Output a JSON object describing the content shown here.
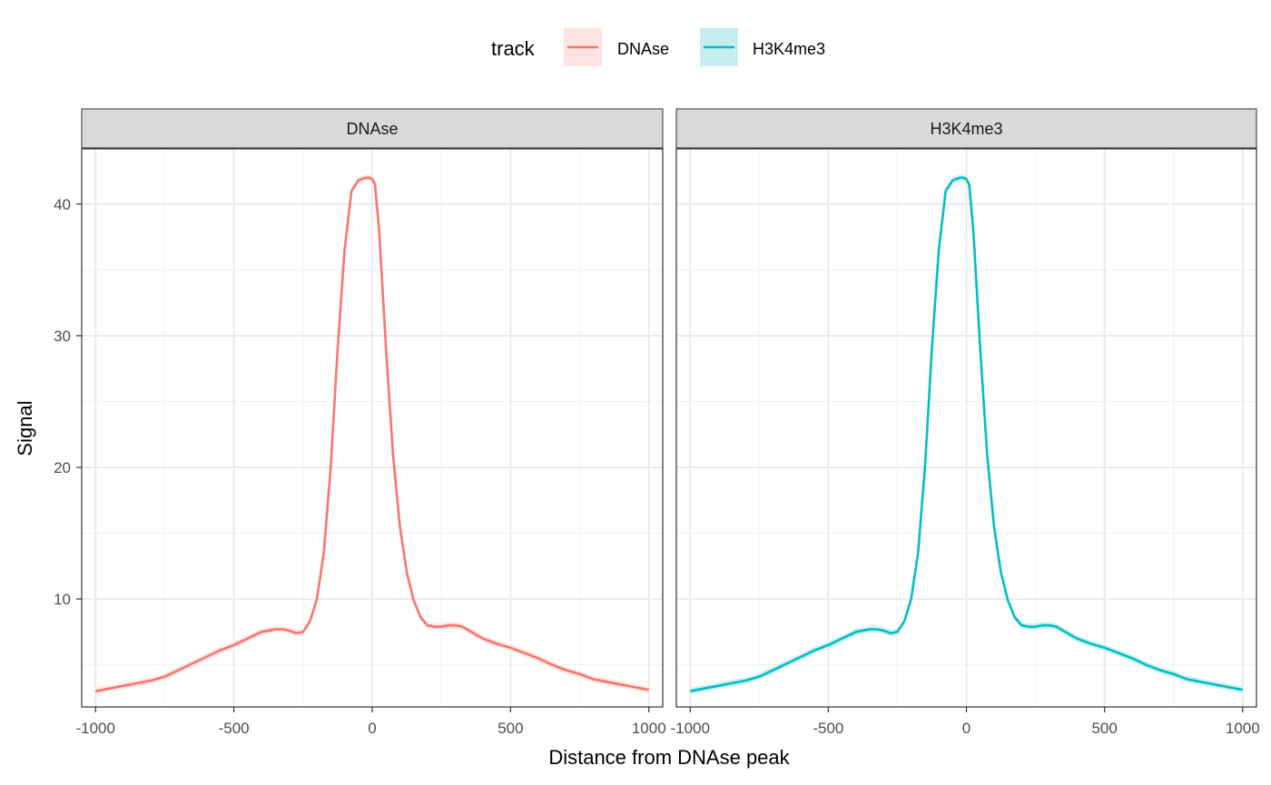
{
  "chart_data": {
    "type": "line",
    "xlabel": "Distance from DNAse peak",
    "ylabel": "Signal",
    "xlim": [
      -1050,
      1050
    ],
    "ylim": [
      1.8,
      44.2
    ],
    "x_ticks": [
      -1000,
      -500,
      0,
      500,
      1000
    ],
    "x_tick_labels": [
      "-1000",
      "-500",
      "0",
      "500",
      "1000"
    ],
    "y_ticks": [
      10,
      20,
      30,
      40
    ],
    "y_tick_labels": [
      "10",
      "20",
      "30",
      "40"
    ],
    "grid": true,
    "legend": {
      "title": "track",
      "placement": "top",
      "entries": [
        {
          "label": "DNAse",
          "color": "#F8766D",
          "fill": "#FDE3E1"
        },
        {
          "label": "H3K4me3",
          "color": "#00BFC4",
          "fill": "#C6EEF0"
        }
      ]
    },
    "facets": [
      "DNAse",
      "H3K4me3"
    ],
    "series": [
      {
        "name": "DNAse",
        "color": "#F8766D",
        "x": [
          -1000,
          -950,
          -900,
          -850,
          -800,
          -750,
          -700,
          -650,
          -600,
          -550,
          -500,
          -450,
          -400,
          -350,
          -325,
          -300,
          -275,
          -250,
          -225,
          -200,
          -175,
          -150,
          -125,
          -100,
          -75,
          -50,
          -25,
          -10,
          0,
          10,
          25,
          50,
          75,
          100,
          125,
          150,
          175,
          200,
          225,
          250,
          275,
          300,
          325,
          350,
          400,
          450,
          500,
          550,
          600,
          650,
          700,
          750,
          800,
          850,
          900,
          950,
          1000
        ],
        "y": [
          3.0,
          3.2,
          3.4,
          3.6,
          3.8,
          4.1,
          4.6,
          5.1,
          5.6,
          6.1,
          6.5,
          7.0,
          7.5,
          7.7,
          7.7,
          7.6,
          7.4,
          7.5,
          8.3,
          10.0,
          13.5,
          20.0,
          29.0,
          36.5,
          41.0,
          41.8,
          42.0,
          42.0,
          41.9,
          41.5,
          38.0,
          29.0,
          21.0,
          15.5,
          12.0,
          9.9,
          8.6,
          8.0,
          7.9,
          7.9,
          8.0,
          8.0,
          7.9,
          7.6,
          7.0,
          6.6,
          6.3,
          5.9,
          5.5,
          5.0,
          4.6,
          4.3,
          3.9,
          3.7,
          3.5,
          3.3,
          3.1
        ]
      },
      {
        "name": "H3K4me3",
        "color": "#00BFC4",
        "x": [
          -1000,
          -950,
          -900,
          -850,
          -800,
          -750,
          -700,
          -650,
          -600,
          -550,
          -500,
          -450,
          -400,
          -350,
          -325,
          -300,
          -275,
          -250,
          -225,
          -200,
          -175,
          -150,
          -125,
          -100,
          -75,
          -50,
          -25,
          -10,
          0,
          10,
          25,
          50,
          75,
          100,
          125,
          150,
          175,
          200,
          225,
          250,
          275,
          300,
          325,
          350,
          400,
          450,
          500,
          550,
          600,
          650,
          700,
          750,
          800,
          850,
          900,
          950,
          1000
        ],
        "y": [
          3.0,
          3.2,
          3.4,
          3.6,
          3.8,
          4.1,
          4.6,
          5.1,
          5.6,
          6.1,
          6.5,
          7.0,
          7.5,
          7.7,
          7.7,
          7.6,
          7.4,
          7.5,
          8.3,
          10.0,
          13.5,
          20.0,
          29.0,
          36.5,
          41.0,
          41.8,
          42.0,
          42.0,
          41.9,
          41.5,
          38.0,
          29.0,
          21.0,
          15.5,
          12.0,
          9.9,
          8.6,
          8.0,
          7.9,
          7.9,
          8.0,
          8.0,
          7.9,
          7.6,
          7.0,
          6.6,
          6.3,
          5.9,
          5.5,
          5.0,
          4.6,
          4.3,
          3.9,
          3.7,
          3.5,
          3.3,
          3.1
        ]
      }
    ]
  }
}
